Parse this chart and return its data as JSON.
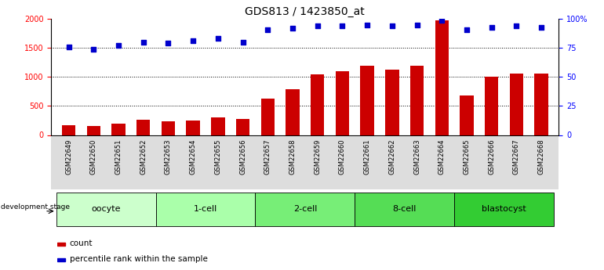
{
  "title": "GDS813 / 1423850_at",
  "samples": [
    "GSM22649",
    "GSM22650",
    "GSM22651",
    "GSM22652",
    "GSM22653",
    "GSM22654",
    "GSM22655",
    "GSM22656",
    "GSM22657",
    "GSM22658",
    "GSM22659",
    "GSM22660",
    "GSM22661",
    "GSM22662",
    "GSM22663",
    "GSM22664",
    "GSM22665",
    "GSM22666",
    "GSM22667",
    "GSM22668"
  ],
  "counts": [
    170,
    155,
    200,
    265,
    240,
    255,
    310,
    280,
    630,
    790,
    1045,
    1095,
    1195,
    1130,
    1190,
    1970,
    685,
    1005,
    1055,
    1065
  ],
  "percentile": [
    76,
    74,
    77,
    80,
    79,
    81,
    83,
    80,
    91,
    92,
    94,
    94,
    95,
    94,
    95,
    99,
    91,
    93,
    94,
    93
  ],
  "group_data": [
    {
      "label": "oocyte",
      "start": 0,
      "end": 3,
      "color": "#ccffcc"
    },
    {
      "label": "1-cell",
      "start": 4,
      "end": 7,
      "color": "#aaffaa"
    },
    {
      "label": "2-cell",
      "start": 8,
      "end": 11,
      "color": "#77ee77"
    },
    {
      "label": "8-cell",
      "start": 12,
      "end": 15,
      "color": "#55dd55"
    },
    {
      "label": "blastocyst",
      "start": 16,
      "end": 19,
      "color": "#33cc33"
    }
  ],
  "bar_color": "#cc0000",
  "dot_color": "#0000cc",
  "left_ylim": [
    0,
    2000
  ],
  "left_yticks": [
    0,
    500,
    1000,
    1500,
    2000
  ],
  "right_ylim": [
    0,
    100
  ],
  "right_yticks": [
    0,
    25,
    50,
    75,
    100
  ],
  "right_yticklabels": [
    "0",
    "25",
    "50",
    "75",
    "100%"
  ],
  "background_color": "#ffffff",
  "title_fontsize": 10,
  "tick_fontsize": 7,
  "xtick_fontsize": 6,
  "group_label_fontsize": 8
}
